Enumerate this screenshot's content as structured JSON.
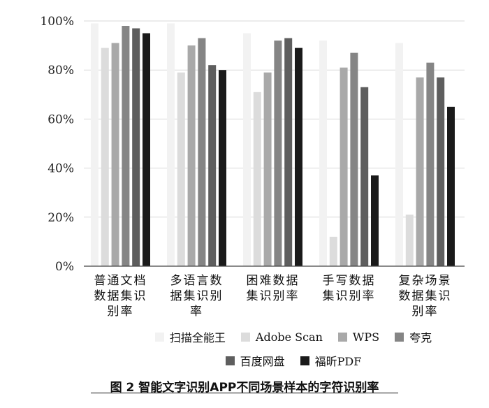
{
  "chart_data": {
    "type": "bar",
    "categories": [
      [
        "普通文档",
        "数据集识",
        "别率"
      ],
      [
        "多语言数",
        "据集识别",
        "率"
      ],
      [
        "困难数据",
        "集识别率"
      ],
      [
        "手写数据",
        "集识别率"
      ],
      [
        "复杂场景",
        "数据集识",
        "别率"
      ]
    ],
    "series": [
      {
        "name": "扫描全能王",
        "color": "#f2f2f2",
        "values": [
          99,
          99,
          95,
          92,
          91
        ]
      },
      {
        "name": "Adobe Scan",
        "color": "#dcdcdc",
        "values": [
          89,
          79,
          71,
          12,
          21
        ]
      },
      {
        "name": "WPS",
        "color": "#a9a9a9",
        "values": [
          91,
          90,
          79,
          81,
          77
        ]
      },
      {
        "name": "夸克",
        "color": "#858585",
        "values": [
          98,
          93,
          92,
          87,
          83
        ]
      },
      {
        "name": "百度网盘",
        "color": "#5e5e5e",
        "values": [
          97,
          82,
          93,
          73,
          77
        ]
      },
      {
        "name": "福昕PDF",
        "color": "#1a1a1a",
        "values": [
          95,
          80,
          89,
          37,
          65
        ]
      }
    ],
    "ylim": [
      0,
      100
    ],
    "yticks": [
      "0%",
      "20%",
      "40%",
      "60%",
      "80%",
      "100%"
    ],
    "grid": true,
    "legend_position": "bottom",
    "title": "图 2  智能文字识别APP不同场景样本的字符识别率"
  }
}
